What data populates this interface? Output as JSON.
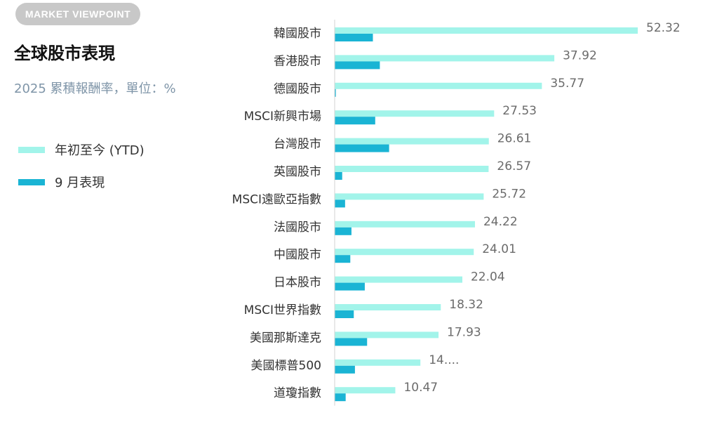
{
  "header": {
    "badge": "MARKET VIEWPOINT",
    "title": "全球股市表現",
    "subtitle": "2025 累積報酬率，單位：%"
  },
  "legend": [
    {
      "label": "年初至今 (YTD)",
      "color": "#a2f4ea"
    },
    {
      "label": "9 月表現",
      "color": "#1ab4d4"
    }
  ],
  "chart_data": {
    "type": "bar",
    "orientation": "horizontal",
    "categories": [
      "韓國股市",
      "香港股市",
      "德國股市",
      "MSCI新興市場",
      "台灣股市",
      "英國股市",
      "MSCI遠歐亞指數",
      "法國股市",
      "中國股市",
      "日本股市",
      "MSCI世界指數",
      "美國那斯達克",
      "美國標普500",
      "道瓊指數"
    ],
    "series": [
      {
        "name": "年初至今 (YTD)",
        "color": "#a2f4ea",
        "values": [
          52.32,
          37.92,
          35.77,
          27.53,
          26.61,
          26.57,
          25.72,
          24.22,
          24.01,
          22.04,
          18.32,
          17.93,
          14.8,
          10.47
        ],
        "labels": [
          "52.32",
          "37.92",
          "35.77",
          "27.53",
          "26.61",
          "26.57",
          "25.72",
          "24.22",
          "24.01",
          "22.04",
          "18.32",
          "17.93",
          "14....",
          "10.47"
        ]
      },
      {
        "name": "9 月表現",
        "color": "#1ab4d4",
        "values": [
          6.6,
          7.8,
          0.2,
          7.0,
          9.4,
          1.3,
          1.8,
          2.9,
          2.7,
          5.2,
          3.3,
          5.6,
          3.5,
          1.9
        ]
      }
    ],
    "xlim": [
      0,
      52.32
    ],
    "grid": false,
    "legend_position": "left"
  }
}
